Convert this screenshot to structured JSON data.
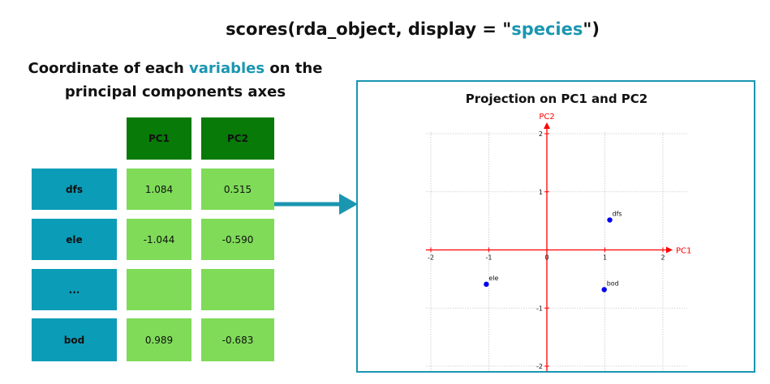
{
  "code": {
    "pre": "scores(rda_object, display = \"",
    "hl": "species",
    "post": "\")"
  },
  "left_heading": {
    "pre": "Coordinate of each ",
    "hl": "variables",
    "post": " on the principal components axes"
  },
  "table": {
    "headers": [
      "PC1",
      "PC2"
    ],
    "rows": [
      {
        "label": "dfs",
        "pc1": "1.084",
        "pc2": "0.515"
      },
      {
        "label": "ele",
        "pc1": "-1.044",
        "pc2": "-0.590"
      },
      {
        "label": "...",
        "pc1": "",
        "pc2": ""
      },
      {
        "label": "bod",
        "pc1": "0.989",
        "pc2": "-0.683"
      }
    ]
  },
  "colors": {
    "accent": "#1a96b0",
    "header_green": "#077a07",
    "value_green": "#7fdb58",
    "label_blue": "#0b9cb8",
    "axis_red": "#ff0000",
    "point_blue": "#0000ee"
  },
  "chart_data": {
    "type": "scatter",
    "title": "Projection on PC1 and PC2",
    "xlabel": "PC1",
    "ylabel": "PC2",
    "xlim": [
      -2,
      2
    ],
    "ylim": [
      -2,
      2
    ],
    "xticks": [
      "-2",
      "-1",
      "0",
      "1",
      "2"
    ],
    "yticks": [
      "2",
      "1",
      "0",
      "-1",
      "-2"
    ],
    "grid": true,
    "points": [
      {
        "label": "dfs",
        "x": 1.084,
        "y": 0.515
      },
      {
        "label": "ele",
        "x": -1.044,
        "y": -0.59
      },
      {
        "label": "bod",
        "x": 0.989,
        "y": -0.683
      }
    ]
  }
}
